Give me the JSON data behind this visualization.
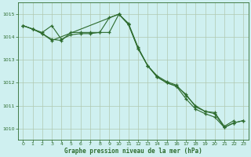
{
  "title": "Graphe pression niveau de la mer (hPa)",
  "background_color": "#cff0f0",
  "plot_bg_color": "#cff0f0",
  "line_color": "#2d6b2d",
  "grid_color": "#b0c8b0",
  "xlim": [
    -0.5,
    23.5
  ],
  "ylim": [
    1009.5,
    1015.5
  ],
  "yticks": [
    1010,
    1011,
    1012,
    1013,
    1014,
    1015
  ],
  "xticks": [
    0,
    1,
    2,
    3,
    4,
    5,
    6,
    7,
    8,
    9,
    10,
    11,
    12,
    13,
    14,
    15,
    16,
    17,
    18,
    19,
    20,
    21,
    22,
    23
  ],
  "series1_x": [
    0,
    1,
    2,
    3,
    4,
    5,
    6,
    7,
    8,
    9,
    10,
    11,
    12,
    13,
    14,
    15,
    16,
    17,
    18,
    19,
    20,
    21,
    22
  ],
  "series1_y": [
    1014.5,
    1014.35,
    1014.2,
    1014.5,
    1013.9,
    1014.1,
    1014.15,
    1014.15,
    1014.2,
    1014.85,
    1015.0,
    1014.6,
    1013.55,
    1012.75,
    1012.3,
    1012.05,
    1011.9,
    1011.45,
    1011.0,
    1010.75,
    1010.7,
    1010.1,
    1010.35
  ],
  "series2_x": [
    0,
    1,
    2,
    3,
    4,
    5,
    6,
    7,
    8,
    9,
    10,
    11,
    12,
    13,
    14,
    15,
    16,
    17,
    18,
    19,
    20,
    21,
    22,
    23
  ],
  "series2_y": [
    1014.5,
    1014.35,
    1014.15,
    1013.9,
    1013.85,
    1014.2,
    1014.2,
    1014.2,
    1014.2,
    1014.2,
    1015.0,
    1014.55,
    1013.5,
    1012.75,
    1012.25,
    1012.0,
    1011.85,
    1011.5,
    1010.95,
    1010.75,
    1010.65,
    1010.05,
    1010.25,
    1010.35
  ],
  "series3_x": [
    0,
    1,
    2,
    3,
    10,
    11,
    12,
    13,
    14,
    15,
    16,
    17,
    18,
    19,
    20,
    21,
    22,
    23
  ],
  "series3_y": [
    1014.5,
    1014.35,
    1014.15,
    1013.85,
    1015.0,
    1014.55,
    1013.5,
    1012.75,
    1012.25,
    1012.0,
    1011.85,
    1011.3,
    1010.85,
    1010.65,
    1010.5,
    1010.05,
    1010.25,
    1010.35
  ],
  "figsize": [
    3.2,
    2.0
  ],
  "dpi": 100
}
